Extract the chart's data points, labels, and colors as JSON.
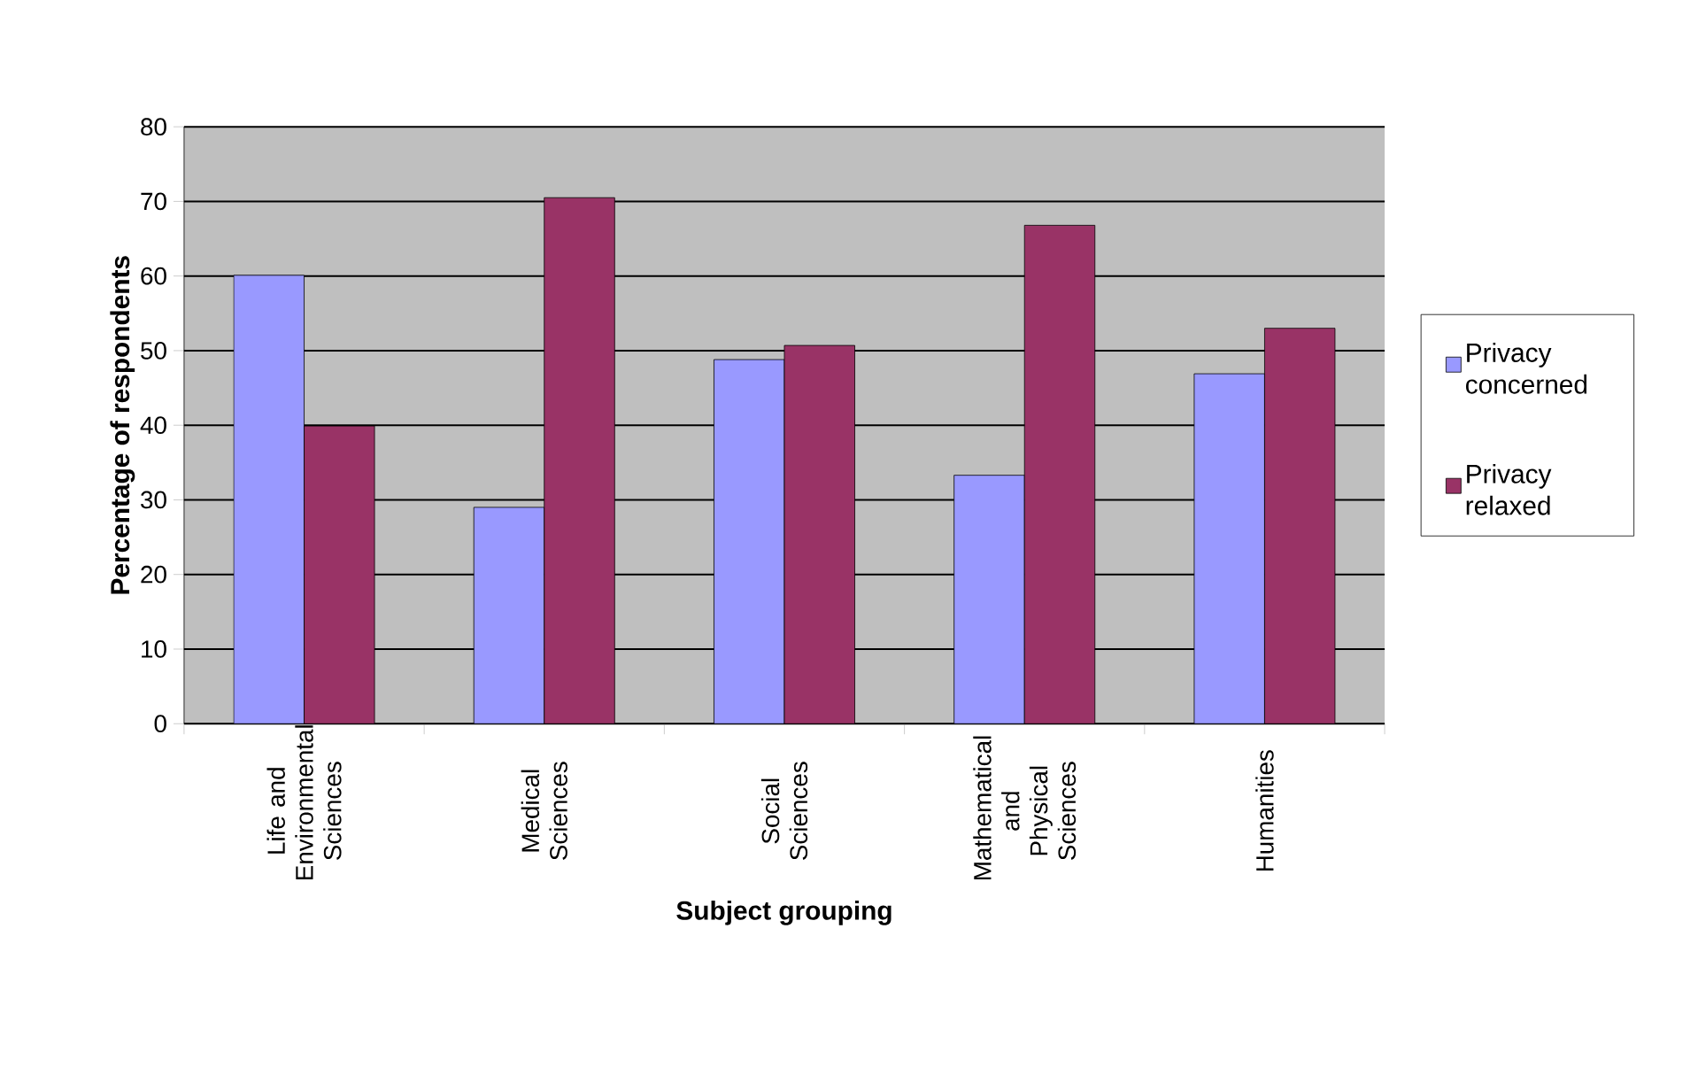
{
  "chart_data": {
    "type": "bar",
    "xlabel": "Subject grouping",
    "ylabel": "Percentage of respondents",
    "categories": [
      "Life and Environmental Sciences",
      "Medical Sciences",
      "Social Sciences",
      "Mathematical and Physical Sciences",
      "Humanities"
    ],
    "series": [
      {
        "name": "Privacy concerned",
        "color": "#9999ff",
        "values": [
          60.1,
          29.0,
          48.8,
          33.3,
          46.9
        ]
      },
      {
        "name": "Privacy relaxed",
        "color": "#993366",
        "values": [
          39.9,
          70.5,
          50.7,
          66.8,
          53.0
        ]
      }
    ],
    "ylim": [
      0,
      80
    ],
    "yticks": [
      0,
      10,
      20,
      30,
      40,
      50,
      60,
      70,
      80
    ],
    "grid": "y",
    "legend": "right"
  }
}
